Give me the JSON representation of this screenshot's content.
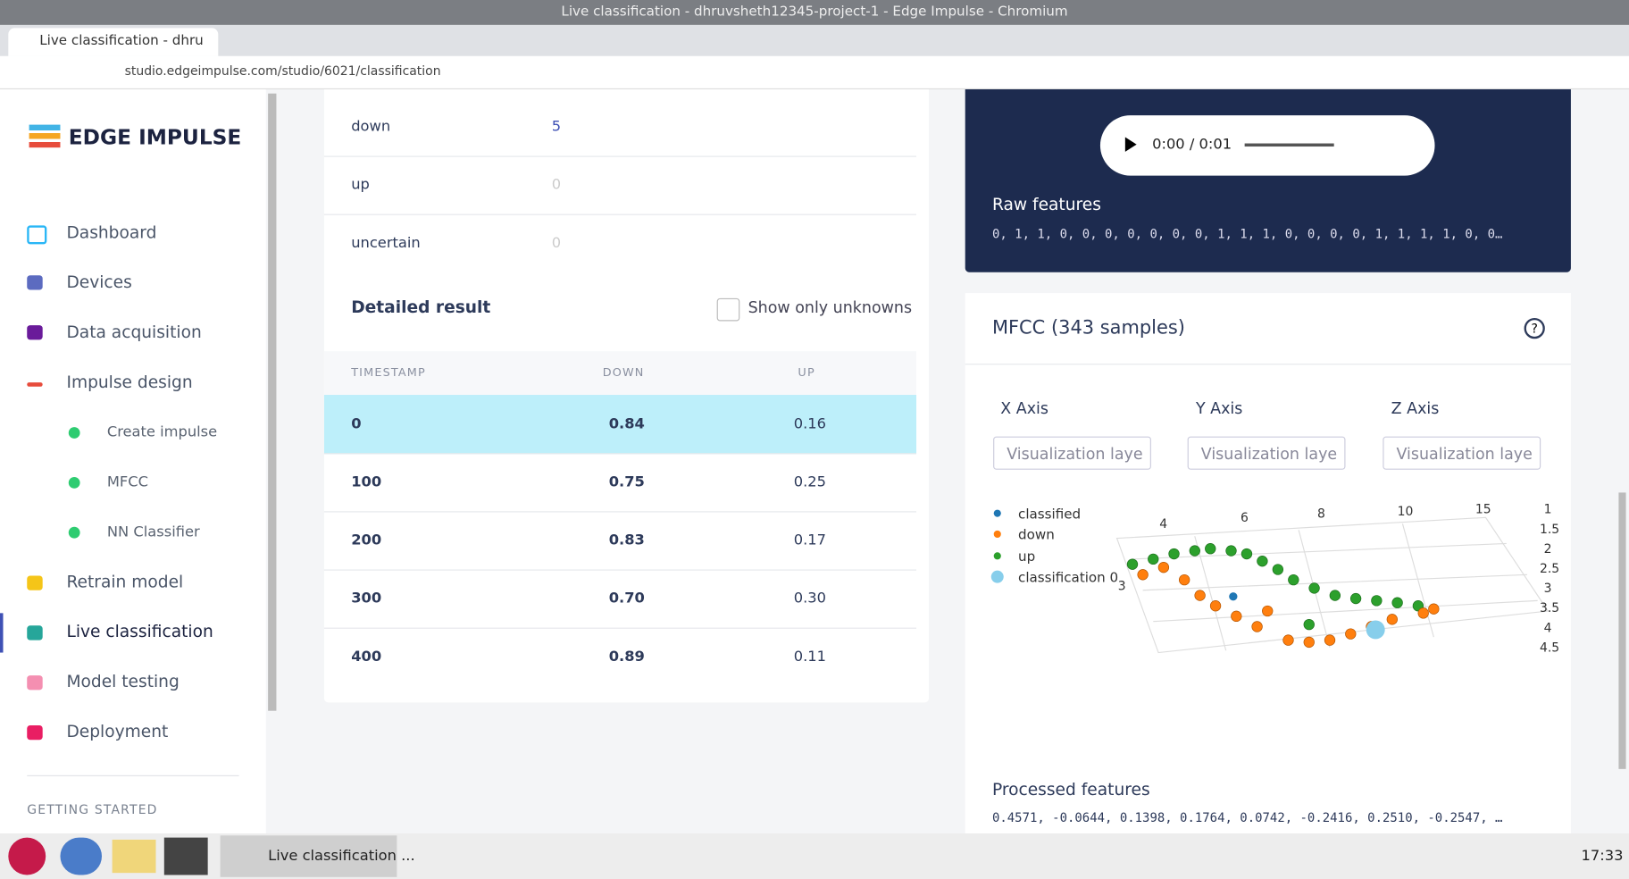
{
  "browser": {
    "window_title": "Live classification - dhruvsheth12345-project-1 - Edge Impulse - Chromium",
    "tab_title": "Live classification - dhru",
    "url": "studio.edgeimpulse.com/studio/6021/classification"
  },
  "sidebar": {
    "logo": "EDGE IMPULSE",
    "nav": [
      "Dashboard",
      "Devices",
      "Data acquisition",
      "Impulse design",
      "Create impulse",
      "MFCC",
      "NN Classifier",
      "Retrain model",
      "Live classification",
      "Model testing",
      "Deployment"
    ],
    "section": "GETTING STARTED"
  },
  "summary": {
    "rows": [
      [
        "down",
        "5"
      ],
      [
        "up",
        "0"
      ],
      [
        "uncertain",
        "0"
      ]
    ]
  },
  "detailed": {
    "title": "Detailed result",
    "checkbox": "Show only unknowns",
    "headers": [
      "TIMESTAMP",
      "DOWN",
      "UP"
    ],
    "rows": [
      [
        "0",
        "0.84",
        "0.16"
      ],
      [
        "100",
        "0.75",
        "0.25"
      ],
      [
        "200",
        "0.83",
        "0.17"
      ],
      [
        "300",
        "0.70",
        "0.30"
      ],
      [
        "400",
        "0.89",
        "0.11"
      ]
    ]
  },
  "audio": {
    "time": "0:00 / 0:01"
  },
  "raw": {
    "title": "Raw features",
    "values": "0, 1, 1, 0, 0, 0, 0, 0, 0, 0, 1, 1, 1, 0, 0, 0, 0, 1, 1, 1, 1, 0, 0…"
  },
  "mfcc": {
    "title": "MFCC (343 samples)",
    "axes": [
      "X Axis",
      "Y Axis",
      "Z Axis"
    ],
    "select": "Visualization laye",
    "legend": [
      "classified",
      "down",
      "up",
      "classification 0"
    ],
    "top_ticks": [
      "4",
      "6",
      "8",
      "10",
      "15"
    ],
    "right_ticks": [
      "1",
      "1.5",
      "2",
      "2.5",
      "3",
      "3.5",
      "4",
      "4.5"
    ],
    "left_tick": "3",
    "processed_title": "Processed features",
    "processed_values": "0.4571, -0.0644, 0.1398, 0.1764, 0.0742, -0.2416, 0.2510, -0.2547, …"
  },
  "taskbar": {
    "app": "Live classification ...",
    "clock": "17:33"
  }
}
